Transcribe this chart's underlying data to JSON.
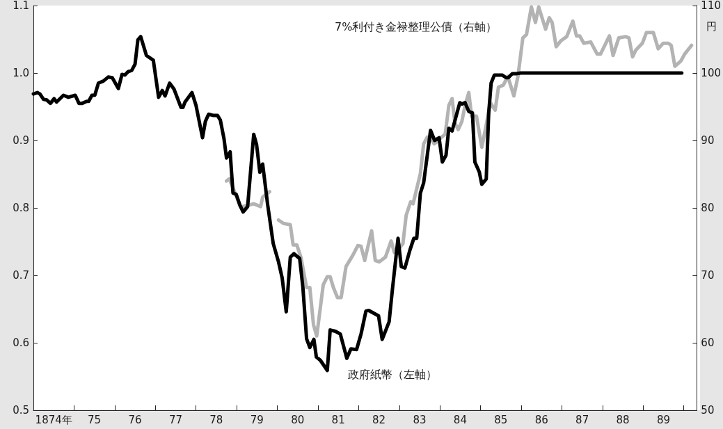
{
  "chart_data": {
    "type": "line",
    "xlim": [
      1873.5,
      1889.82
    ],
    "xticks": [
      {
        "value": 1874,
        "label": "1874年"
      },
      {
        "value": 1874.5,
        "label": null
      },
      {
        "value": 1875,
        "label": "75"
      },
      {
        "value": 1875.5,
        "label": null
      },
      {
        "value": 1876,
        "label": "76"
      },
      {
        "value": 1876.5,
        "label": null
      },
      {
        "value": 1877,
        "label": "77"
      },
      {
        "value": 1877.5,
        "label": null
      },
      {
        "value": 1878,
        "label": "78"
      },
      {
        "value": 1878.5,
        "label": null
      },
      {
        "value": 1879,
        "label": "79"
      },
      {
        "value": 1879.5,
        "label": null
      },
      {
        "value": 1880,
        "label": "80"
      },
      {
        "value": 1880.5,
        "label": null
      },
      {
        "value": 1881,
        "label": "81"
      },
      {
        "value": 1881.5,
        "label": null
      },
      {
        "value": 1882,
        "label": "82"
      },
      {
        "value": 1882.5,
        "label": null
      },
      {
        "value": 1883,
        "label": "83"
      },
      {
        "value": 1883.5,
        "label": null
      },
      {
        "value": 1884,
        "label": "84"
      },
      {
        "value": 1884.5,
        "label": null
      },
      {
        "value": 1885,
        "label": "85"
      },
      {
        "value": 1885.5,
        "label": null
      },
      {
        "value": 1886,
        "label": "86"
      },
      {
        "value": 1886.5,
        "label": null
      },
      {
        "value": 1887,
        "label": "87"
      },
      {
        "value": 1887.5,
        "label": null
      },
      {
        "value": 1888,
        "label": "88"
      },
      {
        "value": 1888.5,
        "label": null
      },
      {
        "value": 1889,
        "label": "89"
      },
      {
        "value": 1889.5,
        "label": null
      }
    ],
    "ylim": [
      0.5,
      1.1
    ],
    "yticks": [
      0.5,
      0.6,
      0.7,
      0.8,
      0.9,
      {
        "value": 1.0,
        "label": "1.0"
      },
      1.1
    ],
    "y2lim": [
      50,
      110
    ],
    "y2ticks": [
      50,
      60,
      70,
      80,
      90,
      100,
      110
    ],
    "y2label": "円",
    "grid": false,
    "legend": false,
    "marker": "none",
    "line_style": "solid",
    "series": [
      {
        "name": "政府紙幣（左軸）",
        "color": "#000000",
        "axis": "y",
        "x": [
          1873.5,
          1873.6,
          1873.66,
          1873.75,
          1873.83,
          1873.92,
          1874.01,
          1874.07,
          1874.24,
          1874.36,
          1874.53,
          1874.62,
          1874.7,
          1874.81,
          1874.86,
          1874.94,
          1875.01,
          1875.1,
          1875.22,
          1875.34,
          1875.44,
          1875.59,
          1875.68,
          1875.75,
          1875.83,
          1875.92,
          1876.0,
          1876.07,
          1876.14,
          1876.28,
          1876.45,
          1876.58,
          1876.67,
          1876.74,
          1876.85,
          1876.96,
          1877.13,
          1877.18,
          1877.23,
          1877.4,
          1877.5,
          1877.66,
          1877.73,
          1877.81,
          1877.93,
          1878.03,
          1878.1,
          1878.19,
          1878.25,
          1878.34,
          1878.41,
          1878.49,
          1878.58,
          1878.66,
          1878.77,
          1878.92,
          1878.99,
          1879.07,
          1879.14,
          1879.26,
          1879.4,
          1879.53,
          1879.62,
          1879.72,
          1879.82,
          1879.91,
          1880.05,
          1880.13,
          1880.22,
          1880.3,
          1880.4,
          1880.46,
          1880.56,
          1880.73,
          1880.8,
          1880.93,
          1881.05,
          1881.21,
          1881.31,
          1881.45,
          1881.56,
          1881.68,
          1881.75,
          1881.99,
          1882.08,
          1882.25,
          1882.33,
          1882.47,
          1882.55,
          1882.64,
          1882.76,
          1882.86,
          1882.93,
          1883.02,
          1883.1,
          1883.27,
          1883.37,
          1883.48,
          1883.56,
          1883.65,
          1883.72,
          1883.8,
          1883.99,
          1884.04,
          1884.12,
          1884.21,
          1884.3,
          1884.36,
          1884.47,
          1884.53,
          1884.64,
          1884.7,
          1884.76,
          1884.84,
          1885.03,
          1885.13,
          1885.18,
          1885.28,
          1885.37,
          1885.49,
          1889.45
        ],
        "values": [
          0.969,
          0.971,
          0.969,
          0.961,
          0.96,
          0.955,
          0.962,
          0.957,
          0.967,
          0.964,
          0.967,
          0.955,
          0.955,
          0.958,
          0.958,
          0.967,
          0.967,
          0.985,
          0.988,
          0.994,
          0.993,
          0.977,
          0.998,
          0.997,
          1.002,
          1.004,
          1.013,
          1.049,
          1.054,
          1.026,
          1.019,
          0.964,
          0.974,
          0.966,
          0.985,
          0.976,
          0.949,
          0.949,
          0.957,
          0.971,
          0.952,
          0.904,
          0.928,
          0.939,
          0.937,
          0.937,
          0.93,
          0.902,
          0.874,
          0.883,
          0.822,
          0.82,
          0.804,
          0.794,
          0.802,
          0.909,
          0.894,
          0.853,
          0.865,
          0.806,
          0.747,
          0.72,
          0.696,
          0.646,
          0.727,
          0.732,
          0.725,
          0.682,
          0.606,
          0.593,
          0.605,
          0.579,
          0.574,
          0.559,
          0.619,
          0.617,
          0.613,
          0.577,
          0.591,
          0.59,
          0.613,
          0.647,
          0.648,
          0.64,
          0.605,
          0.631,
          0.678,
          0.755,
          0.713,
          0.711,
          0.737,
          0.755,
          0.755,
          0.822,
          0.837,
          0.915,
          0.9,
          0.904,
          0.868,
          0.878,
          0.918,
          0.914,
          0.956,
          0.954,
          0.956,
          0.943,
          0.941,
          0.868,
          0.853,
          0.835,
          0.843,
          0.94,
          0.985,
          0.997,
          0.997,
          0.993,
          0.993,
          0.999,
          0.999,
          1.0,
          1.0
        ]
      },
      {
        "name": "7%利付き金禄整理公債（右軸）",
        "color": "#b3b3b3",
        "axis": "y2",
        "x": [
          1878.25,
          1878.32,
          1878.6,
          1878.92,
          1879.09,
          1879.14,
          1879.31,
          1879.42,
          1879.53,
          1879.65,
          1879.82,
          1879.89,
          1879.98,
          1880.08,
          1880.22,
          1880.3,
          1880.39,
          1880.47,
          1880.63,
          1880.73,
          1880.8,
          1880.88,
          1880.98,
          1881.07,
          1881.19,
          1881.36,
          1881.48,
          1881.56,
          1881.65,
          1881.82,
          1881.91,
          1882.01,
          1882.16,
          1882.3,
          1882.38,
          1882.5,
          1882.59,
          1882.67,
          1882.78,
          1882.84,
          1883.02,
          1883.1,
          1883.19,
          1883.29,
          1883.36,
          1883.44,
          1883.54,
          1883.63,
          1883.72,
          1883.8,
          1883.87,
          1883.95,
          1884.04,
          1884.12,
          1884.21,
          1884.28,
          1884.4,
          1884.53,
          1884.64,
          1884.74,
          1884.86,
          1884.94,
          1885.06,
          1885.17,
          1885.32,
          1885.42,
          1885.54,
          1885.63,
          1885.75,
          1885.85,
          1885.93,
          1886.1,
          1886.19,
          1886.26,
          1886.36,
          1886.48,
          1886.62,
          1886.77,
          1886.86,
          1886.94,
          1887.04,
          1887.21,
          1887.37,
          1887.45,
          1887.67,
          1887.76,
          1887.9,
          1888.07,
          1888.15,
          1888.24,
          1888.32,
          1888.48,
          1888.58,
          1888.75,
          1888.87,
          1888.99,
          1889.12,
          1889.19,
          1889.28,
          1889.43,
          1889.52,
          1889.69
        ],
        "values": [
          84.0,
          84.3,
          80.1,
          80.6,
          80.2,
          81.6,
          82.4,
          null,
          78.2,
          77.7,
          77.5,
          74.5,
          74.5,
          72.7,
          68.2,
          68.2,
          62.7,
          61.0,
          68.6,
          69.8,
          69.8,
          68.2,
          66.7,
          66.7,
          71.3,
          73.0,
          74.4,
          74.3,
          72.2,
          76.6,
          72.2,
          72.0,
          72.7,
          75.1,
          73.4,
          74.0,
          74.7,
          78.9,
          80.9,
          80.6,
          85.1,
          89.5,
          90.5,
          90.2,
          89.5,
          89.9,
          90.5,
          90.9,
          95.2,
          96.2,
          92.6,
          91.6,
          92.8,
          95.2,
          97.1,
          93.6,
          93.6,
          89.0,
          92.3,
          95.6,
          94.5,
          97.9,
          98.2,
          99.5,
          96.6,
          99.5,
          105.2,
          105.7,
          109.8,
          107.5,
          109.8,
          106.5,
          108.2,
          107.5,
          103.9,
          104.8,
          105.4,
          107.7,
          105.5,
          105.5,
          104.4,
          104.6,
          102.8,
          102.8,
          105.5,
          102.6,
          105.2,
          105.4,
          105.2,
          102.4,
          103.4,
          104.4,
          106.0,
          106.0,
          103.6,
          104.4,
          104.4,
          104.1,
          101.0,
          101.8,
          102.8,
          104.1
        ]
      }
    ]
  }
}
